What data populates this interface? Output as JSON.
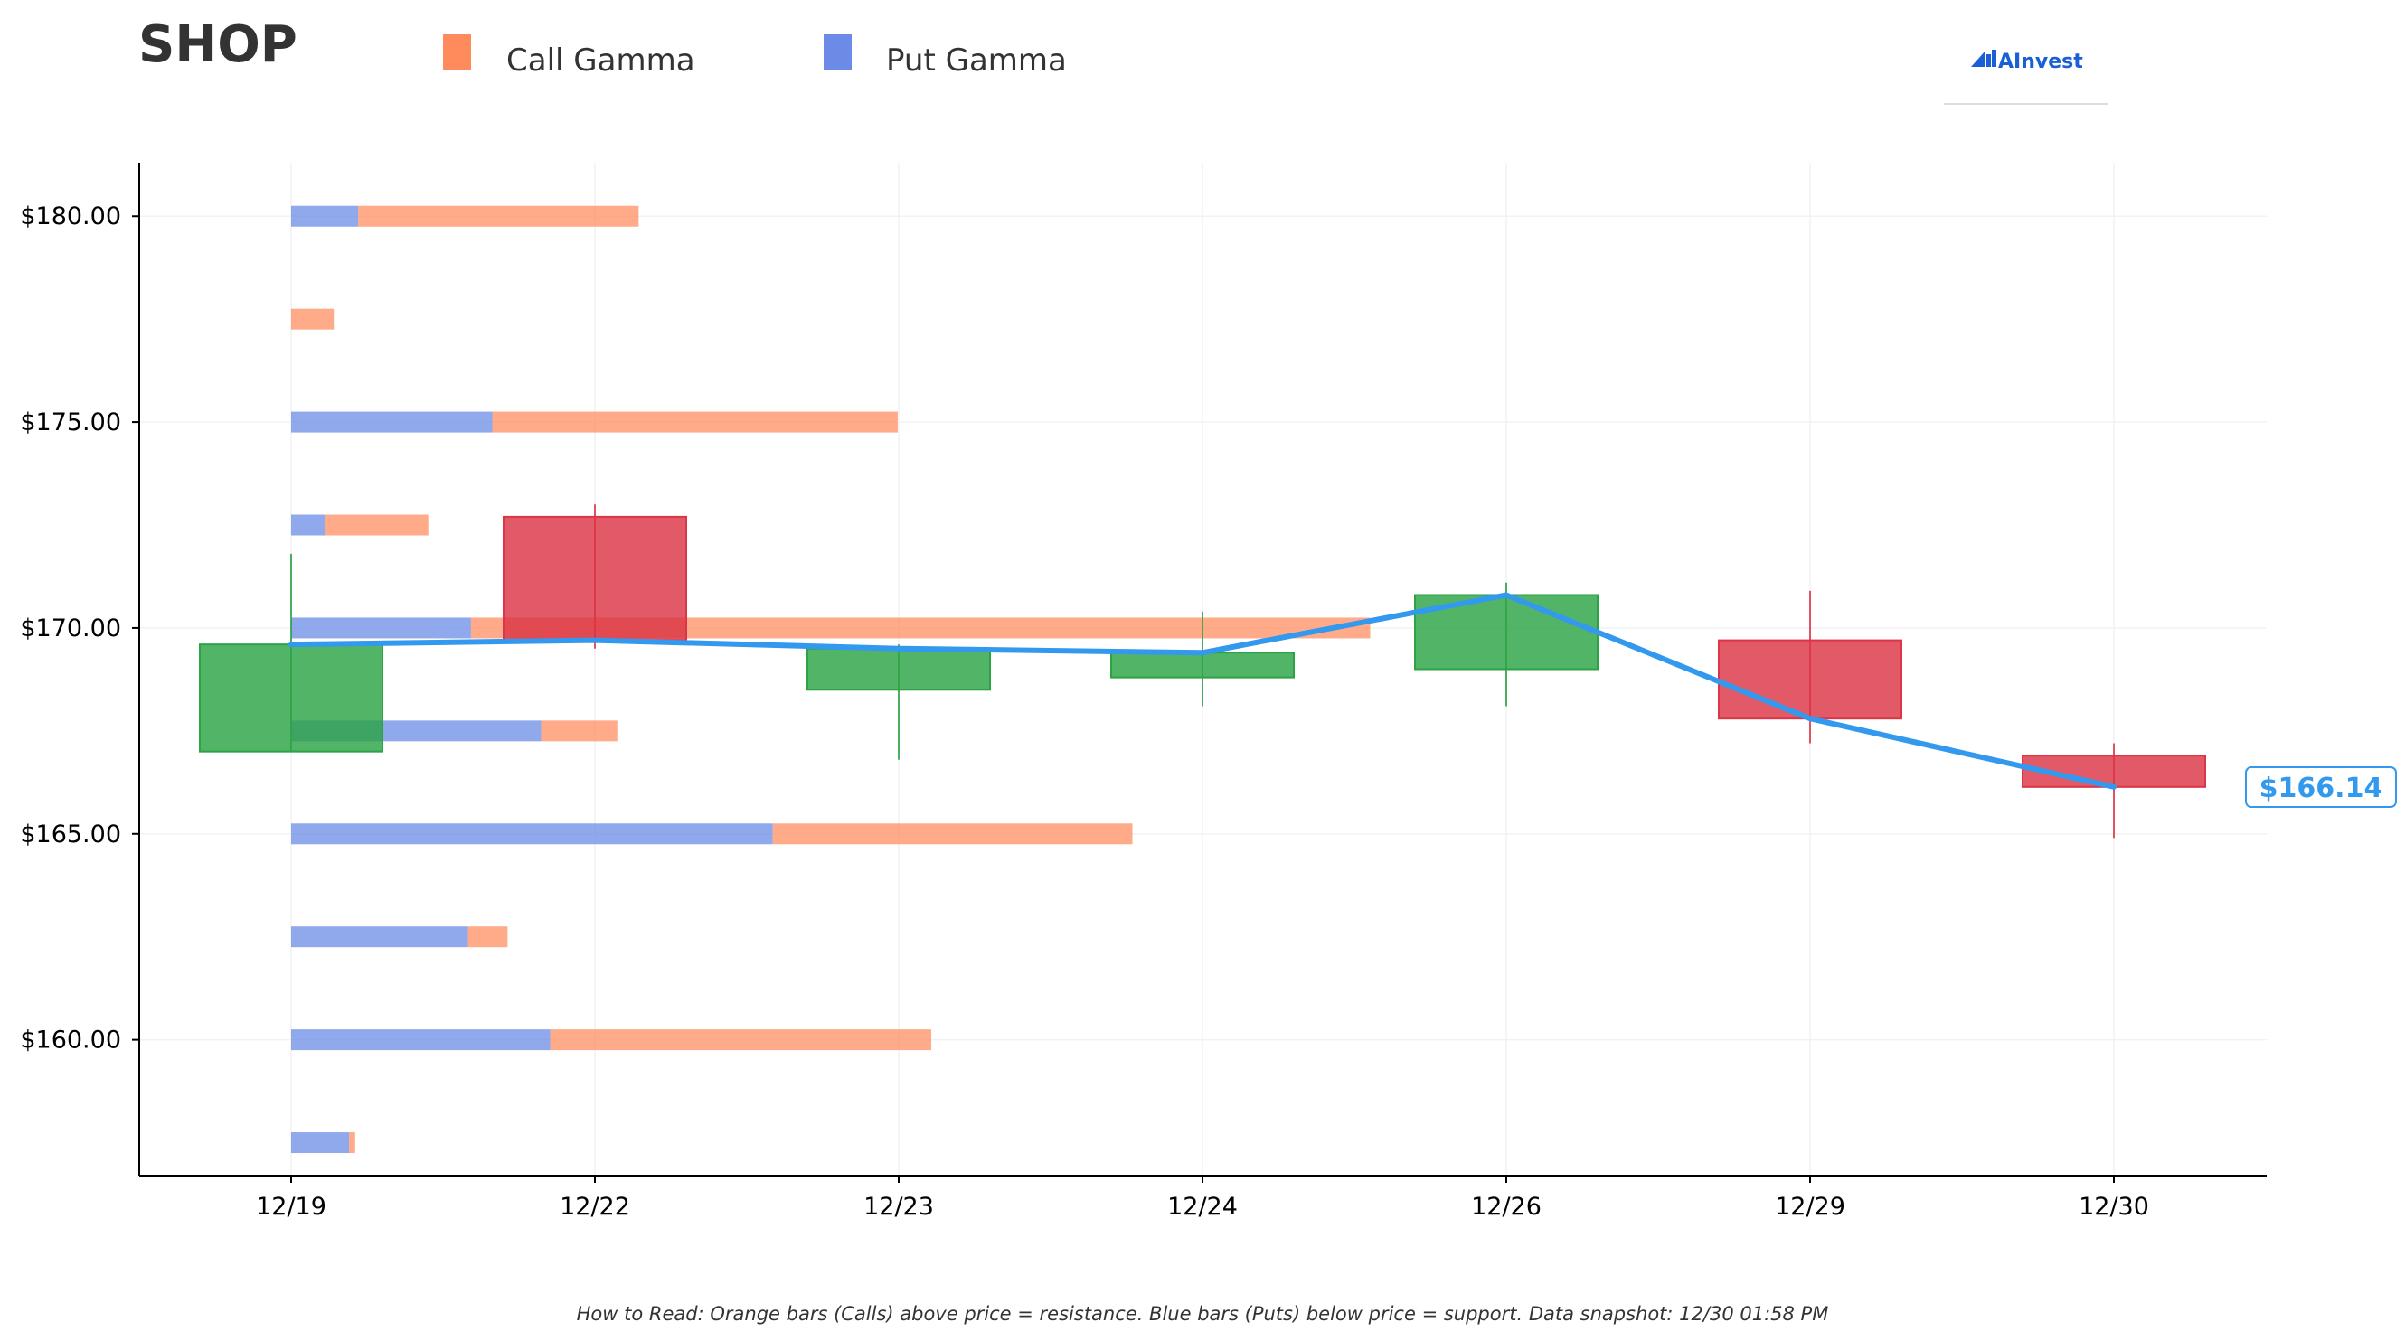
{
  "title": "SHOP",
  "legend": [
    {
      "label": "Call Gamma",
      "color": "#ff8a5c"
    },
    {
      "label": "Put Gamma",
      "color": "#6b8be6"
    }
  ],
  "logo": {
    "text": "AInvest",
    "icon": "chart-bars-icon",
    "color": "#1a5fd6"
  },
  "footer_note": "How to Read: Orange bars (Calls) above price = resistance. Blue bars (Puts) below price = support. Data snapshot: 12/30 01:58 PM",
  "price_label": "$166.14",
  "colors": {
    "up": "#2ca345",
    "down": "#dc3545",
    "close_line": "#3399ee",
    "call": "#ff8a5c",
    "put": "#6b8be6"
  },
  "chart_data": {
    "type": "candlestick",
    "x_labels": [
      "12/19",
      "12/22",
      "12/23",
      "12/24",
      "12/26",
      "12/29",
      "12/30"
    ],
    "y_ticks": [
      160,
      165,
      170,
      175,
      180
    ],
    "y_tick_labels": [
      "$160.00",
      "$165.00",
      "$170.00",
      "$175.00",
      "$180.00"
    ],
    "ylim": [
      156.7,
      181.3
    ],
    "grid": true,
    "candles": [
      {
        "date": "12/19",
        "open": 167.0,
        "high": 171.8,
        "low": 167.0,
        "close": 169.6
      },
      {
        "date": "12/22",
        "open": 172.7,
        "high": 173.0,
        "low": 169.5,
        "close": 169.7
      },
      {
        "date": "12/23",
        "open": 168.5,
        "high": 169.6,
        "low": 166.8,
        "close": 169.5
      },
      {
        "date": "12/24",
        "open": 168.8,
        "high": 170.4,
        "low": 168.1,
        "close": 169.4
      },
      {
        "date": "12/26",
        "open": 169.0,
        "high": 171.1,
        "low": 168.1,
        "close": 170.8
      },
      {
        "date": "12/29",
        "open": 169.7,
        "high": 170.9,
        "low": 167.2,
        "close": 167.8
      },
      {
        "date": "12/30",
        "open": 166.9,
        "high": 167.2,
        "low": 164.9,
        "close": 166.14
      }
    ],
    "close_line": [
      169.6,
      169.7,
      169.5,
      169.4,
      170.8,
      167.8,
      166.14
    ],
    "gamma_bars": [
      {
        "strike": 180.0,
        "put": 0.22,
        "call": 0.92
      },
      {
        "strike": 177.5,
        "put": 0.0,
        "call": 0.14
      },
      {
        "strike": 175.0,
        "put": 0.66,
        "call": 1.33
      },
      {
        "strike": 172.5,
        "put": 0.11,
        "call": 0.34
      },
      {
        "strike": 170.0,
        "put": 0.59,
        "call": 2.95
      },
      {
        "strike": 167.5,
        "put": 0.82,
        "call": 0.25
      },
      {
        "strike": 165.0,
        "put": 1.58,
        "call": 1.18
      },
      {
        "strike": 162.5,
        "put": 0.58,
        "call": 0.13
      },
      {
        "strike": 160.0,
        "put": 0.85,
        "call": 1.25
      },
      {
        "strike": 157.5,
        "put": 0.19,
        "call": 0.02
      }
    ],
    "gamma_axis_max": 3.5
  }
}
